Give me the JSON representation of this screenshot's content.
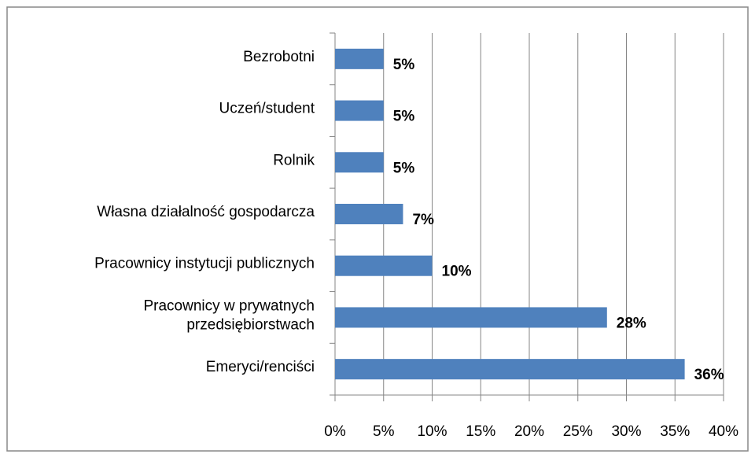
{
  "chart_data": {
    "type": "barh",
    "categories": [
      "Bezrobotni",
      "Uczeń/student",
      "Rolnik",
      "Własna działalność gospodarcza",
      "Pracownicy instytucji publicznych",
      "Pracownicy w prywatnych\nprzedsiębiorstwach",
      "Emeryci/renciści"
    ],
    "values": [
      5,
      5,
      5,
      7,
      10,
      28,
      36
    ],
    "value_labels": [
      "5%",
      "5%",
      "5%",
      "7%",
      "10%",
      "28%",
      "36%"
    ],
    "color": "#4f81bd",
    "xlim": [
      0,
      40
    ],
    "xticks": [
      {
        "value": 0,
        "label": "0%"
      },
      {
        "value": 5,
        "label": "5%"
      },
      {
        "value": 10,
        "label": "10%"
      },
      {
        "value": 15,
        "label": "15%"
      },
      {
        "value": 20,
        "label": "20%"
      },
      {
        "value": 25,
        "label": "25%"
      },
      {
        "value": 30,
        "label": "30%"
      },
      {
        "value": 35,
        "label": "35%"
      },
      {
        "value": 40,
        "label": "40%"
      }
    ],
    "grid": true
  }
}
